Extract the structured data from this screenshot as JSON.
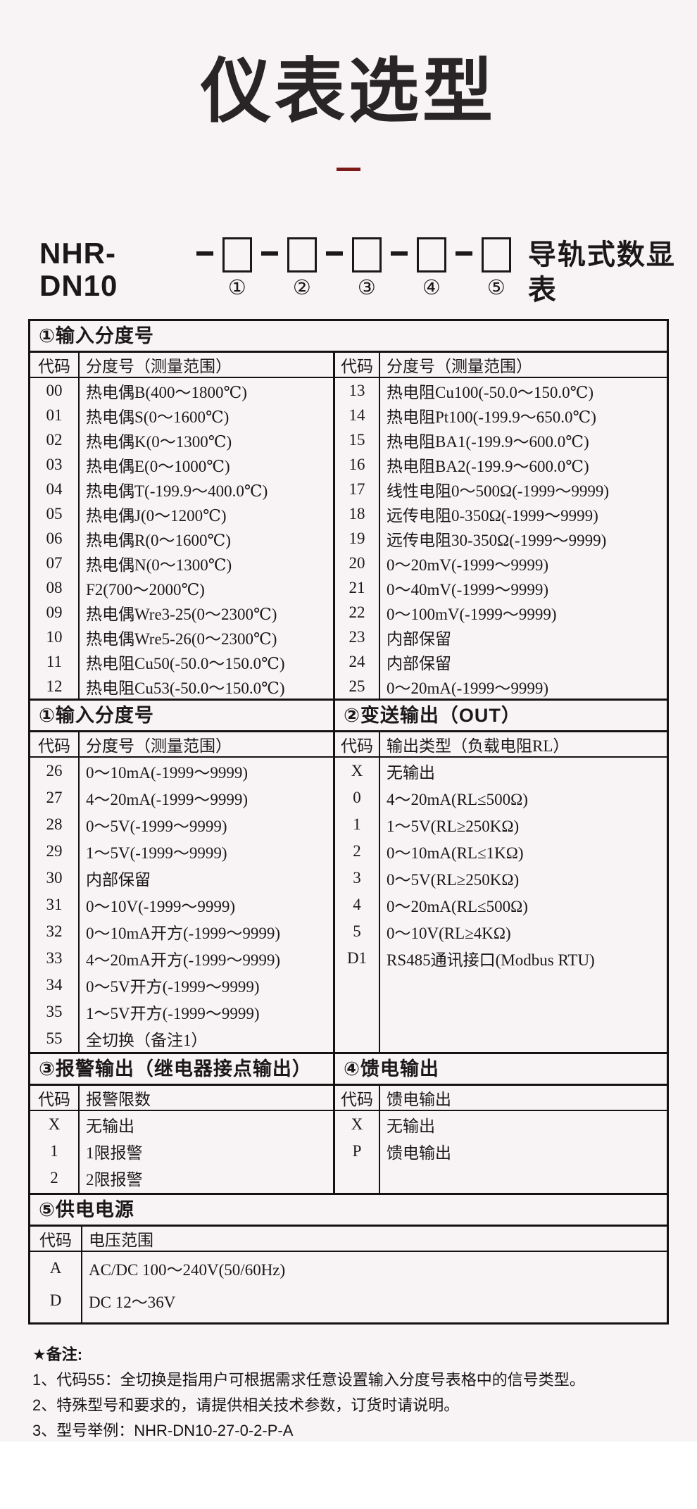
{
  "title": "仪表选型",
  "model": {
    "prefix": "NHR-DN10",
    "suffix": "导轨式数显表",
    "slots": [
      {
        "pos": "①"
      },
      {
        "pos": "②"
      },
      {
        "pos": "③"
      },
      {
        "pos": "④"
      },
      {
        "pos": "⑤"
      }
    ]
  },
  "section1": {
    "title": "①输入分度号",
    "header_code": "代码",
    "header_desc": "分度号（测量范围）",
    "left_rows": [
      {
        "c": "00",
        "d": "热电偶B(400～1800℃)"
      },
      {
        "c": "01",
        "d": "热电偶S(0～1600℃)"
      },
      {
        "c": "02",
        "d": "热电偶K(0～1300℃)"
      },
      {
        "c": "03",
        "d": "热电偶E(0～1000℃)"
      },
      {
        "c": "04",
        "d": "热电偶T(-199.9～400.0℃)"
      },
      {
        "c": "05",
        "d": "热电偶J(0～1200℃)"
      },
      {
        "c": "06",
        "d": "热电偶R(0～1600℃)"
      },
      {
        "c": "07",
        "d": "热电偶N(0～1300℃)"
      },
      {
        "c": "08",
        "d": "F2(700～2000℃)"
      },
      {
        "c": "09",
        "d": "热电偶Wre3-25(0～2300℃)"
      },
      {
        "c": "10",
        "d": "热电偶Wre5-26(0～2300℃)"
      },
      {
        "c": "11",
        "d": "热电阻Cu50(-50.0～150.0℃)"
      },
      {
        "c": "12",
        "d": "热电阻Cu53(-50.0～150.0℃)"
      }
    ],
    "right_rows": [
      {
        "c": "13",
        "d": "热电阻Cu100(-50.0～150.0℃)"
      },
      {
        "c": "14",
        "d": "热电阻Pt100(-199.9～650.0℃)"
      },
      {
        "c": "15",
        "d": "热电阻BA1(-199.9～600.0℃)"
      },
      {
        "c": "16",
        "d": "热电阻BA2(-199.9～600.0℃)"
      },
      {
        "c": "17",
        "d": "线性电阻0～500Ω(-1999～9999)"
      },
      {
        "c": "18",
        "d": "远传电阻0-350Ω(-1999～9999)"
      },
      {
        "c": "19",
        "d": "远传电阻30-350Ω(-1999～9999)"
      },
      {
        "c": "20",
        "d": "0～20mV(-1999～9999)"
      },
      {
        "c": "21",
        "d": "0～40mV(-1999～9999)"
      },
      {
        "c": "22",
        "d": "0～100mV(-1999～9999)"
      },
      {
        "c": "23",
        "d": "内部保留"
      },
      {
        "c": "24",
        "d": "内部保留"
      },
      {
        "c": "25",
        "d": "0～20mA(-1999～9999)"
      }
    ]
  },
  "section2_left": {
    "title": "①输入分度号",
    "header_code": "代码",
    "header_desc": "分度号（测量范围）",
    "rows": [
      {
        "c": "26",
        "d": "0～10mA(-1999～9999)"
      },
      {
        "c": "27",
        "d": "4～20mA(-1999～9999)"
      },
      {
        "c": "28",
        "d": "0～5V(-1999～9999)"
      },
      {
        "c": "29",
        "d": "1～5V(-1999～9999)"
      },
      {
        "c": "30",
        "d": "内部保留"
      },
      {
        "c": "31",
        "d": "0～10V(-1999～9999)"
      },
      {
        "c": "32",
        "d": "0～10mA开方(-1999～9999)"
      },
      {
        "c": "33",
        "d": "4～20mA开方(-1999～9999)"
      },
      {
        "c": "34",
        "d": "0～5V开方(-1999～9999)"
      },
      {
        "c": "35",
        "d": "1～5V开方(-1999～9999)"
      },
      {
        "c": "55",
        "d": "全切换（备注1）"
      }
    ]
  },
  "section2_right": {
    "title": "②变送输出（OUT）",
    "header_code": "代码",
    "header_desc": "输出类型（负载电阻RL）",
    "rows": [
      {
        "c": "X",
        "d": "无输出"
      },
      {
        "c": "0",
        "d": "4～20mA(RL≤500Ω)"
      },
      {
        "c": "1",
        "d": "1～5V(RL≥250KΩ)"
      },
      {
        "c": "2",
        "d": "0～10mA(RL≤1KΩ)"
      },
      {
        "c": "3",
        "d": "0～5V(RL≥250KΩ)"
      },
      {
        "c": "4",
        "d": "0～20mA(RL≤500Ω)"
      },
      {
        "c": "5",
        "d": "0～10V(RL≥4KΩ)"
      },
      {
        "c": "D1",
        "d": "RS485通讯接口(Modbus RTU)"
      }
    ]
  },
  "section3": {
    "title": "③报警输出（继电器接点输出）",
    "header_code": "代码",
    "header_desc": "报警限数",
    "rows": [
      {
        "c": "X",
        "d": "无输出"
      },
      {
        "c": "1",
        "d": "1限报警"
      },
      {
        "c": "2",
        "d": "2限报警"
      }
    ]
  },
  "section4": {
    "title": "④馈电输出",
    "header_code": "代码",
    "header_desc": "馈电输出",
    "rows": [
      {
        "c": "X",
        "d": "无输出"
      },
      {
        "c": "P",
        "d": "馈电输出"
      }
    ]
  },
  "section5": {
    "title": "⑤供电电源",
    "header_code": "代码",
    "header_desc": "电压范围",
    "rows": [
      {
        "c": "A",
        "d": "AC/DC 100～240V(50/60Hz)"
      },
      {
        "c": "D",
        "d": "DC 12～36V"
      }
    ]
  },
  "notes": {
    "title": "★备注:",
    "items": [
      "1、代码55：全切换是指用户可根据需求任意设置输入分度号表格中的信号类型。",
      "2、特殊型号和要求的，请提供相关技术参数，订货时请说明。",
      "3、型号举例：NHR-DN10-27-0-2-P-A"
    ]
  }
}
